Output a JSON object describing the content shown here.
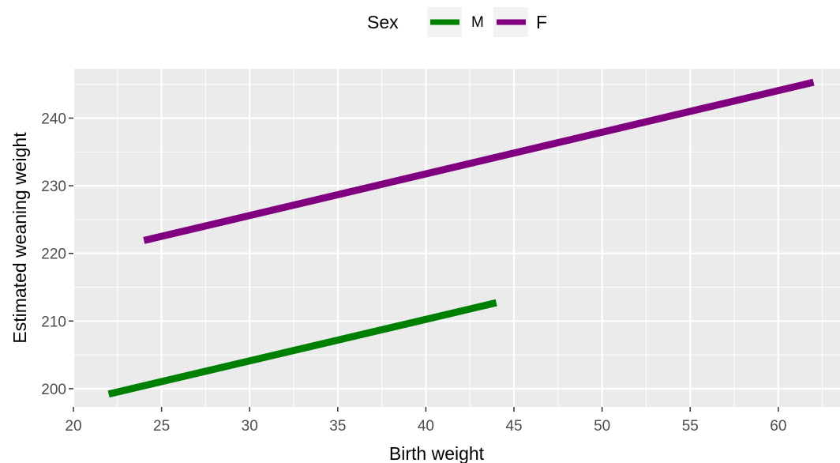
{
  "chart_data": {
    "type": "line",
    "title": "",
    "xlabel": "Birth weight",
    "ylabel": "Estimated weaning weight",
    "xlim": [
      20,
      63.5
    ],
    "ylim": [
      197.3,
      247.3
    ],
    "x_ticks": [
      "20",
      "25",
      "30",
      "35",
      "40",
      "45",
      "50",
      "55",
      "60"
    ],
    "y_ticks": [
      "200",
      "210",
      "220",
      "230",
      "240"
    ],
    "grid": true,
    "legend": {
      "title": "Sex",
      "position": "top",
      "entries": [
        "M",
        "F"
      ]
    },
    "series": [
      {
        "name": "M",
        "color": "#008000",
        "x": [
          22,
          44
        ],
        "y": [
          199.2,
          212.7
        ]
      },
      {
        "name": "F",
        "color": "#800080",
        "x": [
          24,
          62
        ],
        "y": [
          221.9,
          245.3
        ]
      }
    ]
  }
}
